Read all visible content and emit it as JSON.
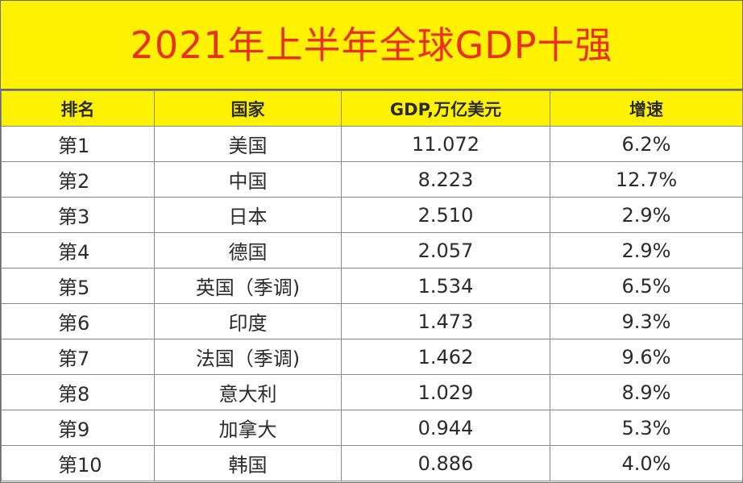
{
  "title": "2021年上半年全球GDP十强",
  "colors": {
    "header_bg": "#fff200",
    "title_text": "#e8301c",
    "text": "#2b2b2b",
    "border": "#8a8a8a"
  },
  "chart_data": {
    "type": "table",
    "title": "2021年上半年全球GDP十强",
    "columns": [
      "排名",
      "国家",
      "GDP,万亿美元",
      "增速"
    ],
    "rows": [
      [
        "第1",
        "美国",
        "11.072",
        "6.2%"
      ],
      [
        "第2",
        "中国",
        "8.223",
        "12.7%"
      ],
      [
        "第3",
        "日本",
        "2.510",
        "2.9%"
      ],
      [
        "第4",
        "德国",
        "2.057",
        "2.9%"
      ],
      [
        "第5",
        "英国（季调)",
        "1.534",
        "6.5%"
      ],
      [
        "第6",
        "印度",
        "1.473",
        "9.3%"
      ],
      [
        "第7",
        "法国（季调)",
        "1.462",
        "9.6%"
      ],
      [
        "第8",
        "意大利",
        "1.029",
        "8.9%"
      ],
      [
        "第9",
        "加拿大",
        "0.944",
        "5.3%"
      ],
      [
        "第10",
        "韩国",
        "0.886",
        "4.0%"
      ]
    ]
  }
}
